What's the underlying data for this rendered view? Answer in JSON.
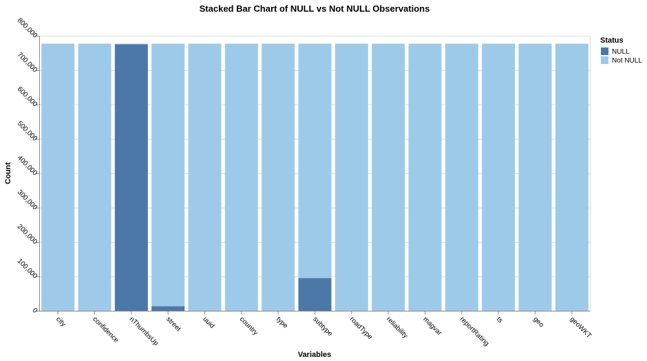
{
  "chart_data": {
    "type": "bar",
    "stacked": true,
    "title": "Stacked Bar Chart of NULL vs Not NULL Observations",
    "xlabel": "Variables",
    "ylabel": "Count",
    "ylim": [
      0,
      800000
    ],
    "yticks": [
      0,
      100000,
      200000,
      300000,
      400000,
      500000,
      600000,
      700000,
      800000
    ],
    "ytick_labels": [
      "0",
      "100,000",
      "200,000",
      "300,000",
      "400,000",
      "500,000",
      "600,000",
      "700,000",
      "800,000"
    ],
    "grid": true,
    "legend_title": "Status",
    "legend_position": "top-right",
    "categories": [
      "city",
      "confidence",
      "nThumbsUp",
      "street",
      "uuid",
      "country",
      "type",
      "subtype",
      "roadType",
      "reliability",
      "magvar",
      "reportRating",
      "ts",
      "geo",
      "geoWKT"
    ],
    "series": [
      {
        "name": "NULL",
        "color": "#4c78a8",
        "values": [
          0,
          0,
          776000,
          14000,
          0,
          0,
          0,
          96000,
          0,
          0,
          0,
          0,
          0,
          0,
          0
        ]
      },
      {
        "name": "Not NULL",
        "color": "#9ecae9",
        "values": [
          778000,
          778000,
          2000,
          764000,
          778000,
          778000,
          778000,
          682000,
          778000,
          778000,
          778000,
          778000,
          778000,
          778000,
          778000
        ]
      }
    ]
  }
}
